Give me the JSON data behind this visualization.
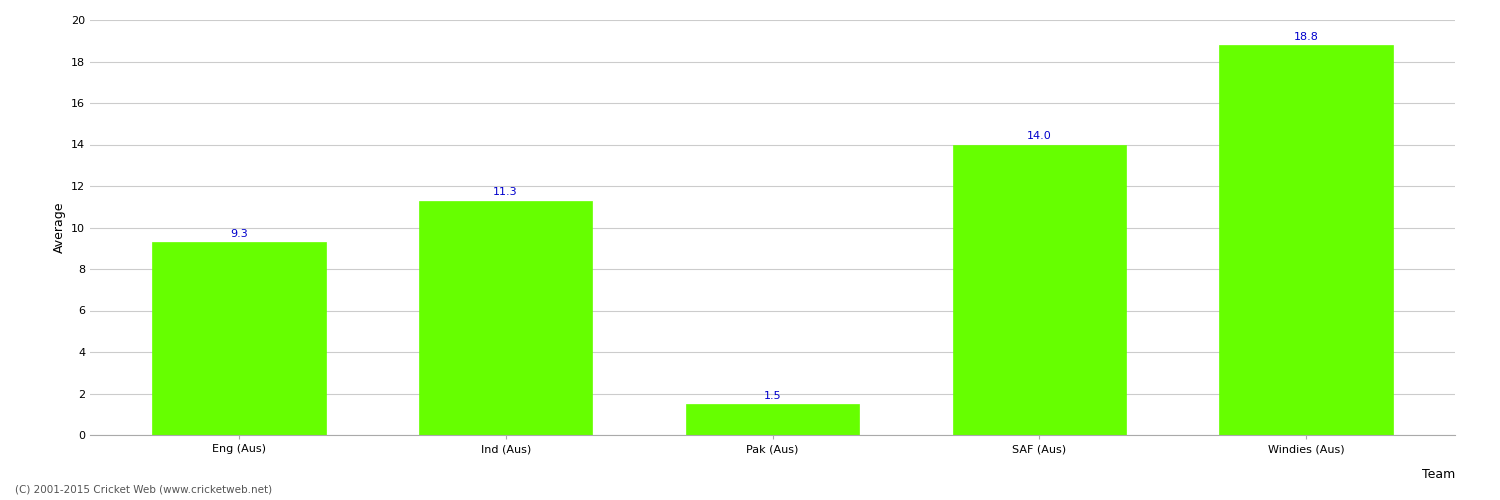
{
  "categories": [
    "Eng (Aus)",
    "Ind (Aus)",
    "Pak (Aus)",
    "SAF (Aus)",
    "Windies (Aus)"
  ],
  "values": [
    9.3,
    11.3,
    1.5,
    14.0,
    18.8
  ],
  "bar_color": "#66ff00",
  "bar_edge_color": "#66ff00",
  "label_color": "#0000cc",
  "xlabel": "Team",
  "ylabel": "Average",
  "ylim": [
    0,
    20
  ],
  "yticks": [
    0,
    2,
    4,
    6,
    8,
    10,
    12,
    14,
    16,
    18,
    20
  ],
  "grid_color": "#cccccc",
  "background_color": "#ffffff",
  "footer_text": "(C) 2001-2015 Cricket Web (www.cricketweb.net)",
  "axis_label_fontsize": 9,
  "tick_fontsize": 8,
  "bar_label_fontsize": 8,
  "footer_fontsize": 7.5,
  "bar_width": 0.65
}
